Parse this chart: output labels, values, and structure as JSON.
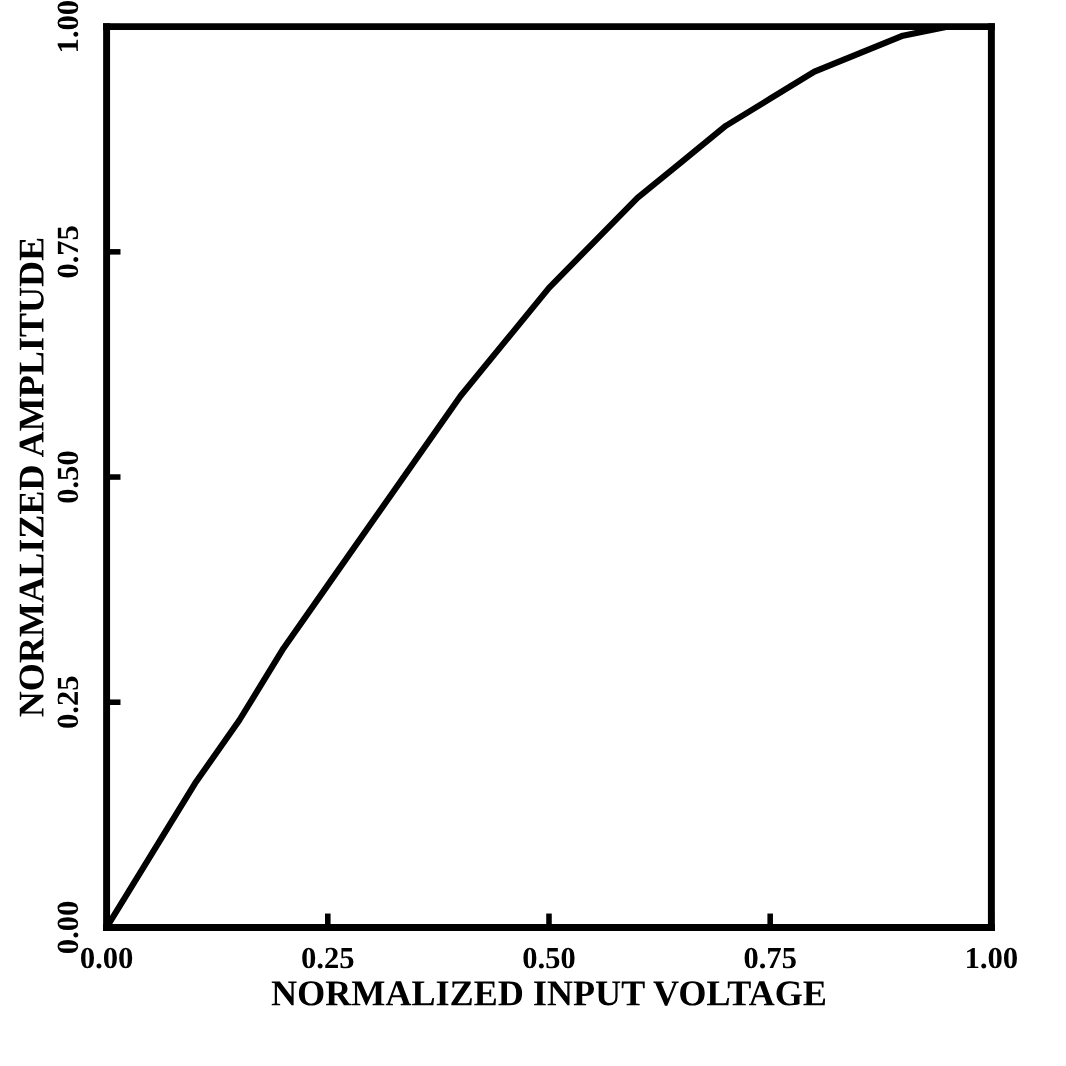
{
  "chart_data": {
    "type": "line",
    "xlabel": "NORMALIZED INPUT VOLTAGE",
    "ylabel": "NORMALIZED AMPLITUDE",
    "x": [
      0,
      0.05,
      0.1,
      0.15,
      0.2,
      0.25,
      0.3,
      0.35,
      0.4,
      0.45,
      0.5,
      0.55,
      0.6,
      0.65,
      0.7,
      0.75,
      0.8,
      0.85,
      0.9,
      0.95,
      1.0
    ],
    "series": [
      {
        "color": "#000000",
        "values": [
          0,
          0.08,
          0.16,
          0.23,
          0.31,
          0.38,
          0.45,
          0.52,
          0.59,
          0.65,
          0.71,
          0.76,
          0.81,
          0.85,
          0.89,
          0.92,
          0.95,
          0.97,
          0.99,
          1.0,
          1.0
        ]
      }
    ],
    "xlim": [
      0,
      1
    ],
    "ylim": [
      0,
      1
    ],
    "xticks": [
      {
        "value": 0,
        "label": "0.00"
      },
      {
        "value": 0.25,
        "label": "0.25"
      },
      {
        "value": 0.5,
        "label": "0.50"
      },
      {
        "value": 0.75,
        "label": "0.75"
      },
      {
        "value": 1,
        "label": "1.00"
      }
    ],
    "yticks": [
      {
        "value": 0,
        "label": "0.00"
      },
      {
        "value": 0.25,
        "label": "0.25"
      },
      {
        "value": 0.5,
        "label": "0.50"
      },
      {
        "value": 0.75,
        "label": "0.75"
      },
      {
        "value": 1,
        "label": "1.00"
      }
    ],
    "grid": false,
    "legend": false,
    "marker": "none",
    "line_style": "solid"
  }
}
